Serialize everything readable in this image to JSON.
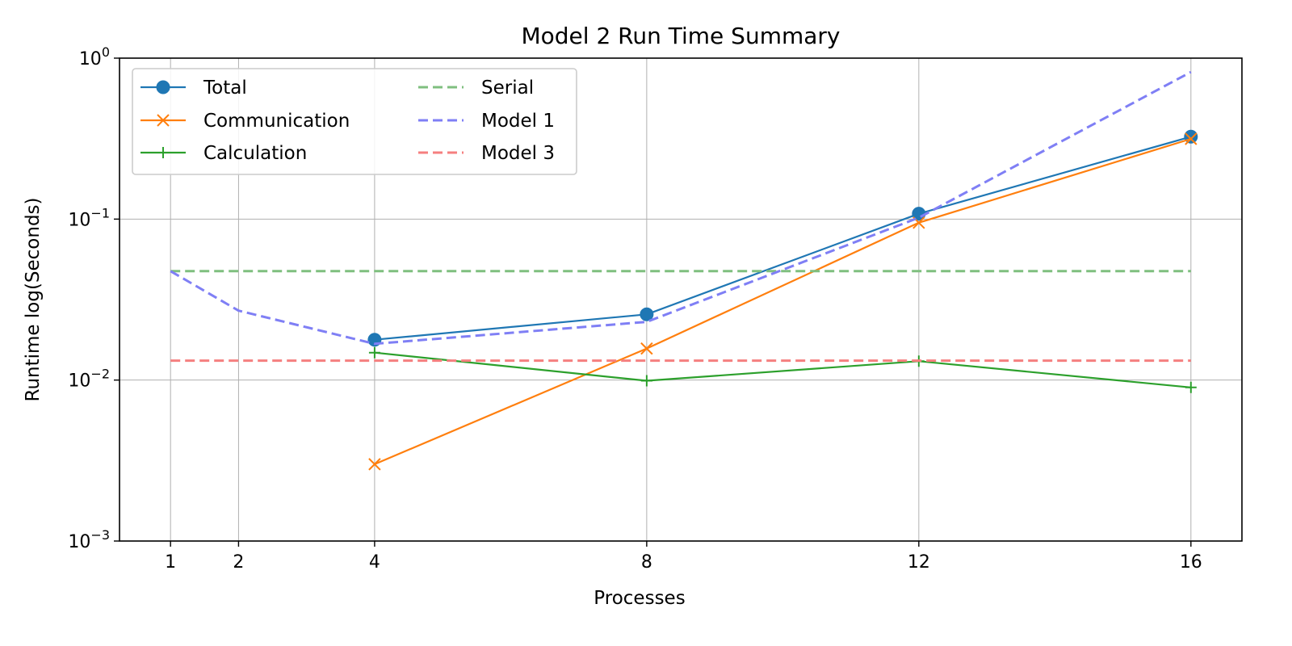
{
  "chart_data": {
    "type": "line",
    "title": "Model 2 Run Time Summary",
    "xlabel": "Processes",
    "ylabel": "Runtime log(Seconds)",
    "y_scale": "log",
    "ylim": [
      0.001,
      1
    ],
    "xlim": [
      0.25,
      16.75
    ],
    "x_ticks": [
      1,
      2,
      4,
      8,
      12,
      16
    ],
    "y_ticks": [
      {
        "value": 0.001,
        "base": "10",
        "exp": "−3"
      },
      {
        "value": 0.01,
        "base": "10",
        "exp": "−2"
      },
      {
        "value": 0.1,
        "base": "10",
        "exp": "−1"
      },
      {
        "value": 1,
        "base": "10",
        "exp": "0"
      }
    ],
    "grid": true,
    "legend_placement": "top-left",
    "series": [
      {
        "name": "Total",
        "color": "#1f77b4",
        "marker": "circle",
        "style": "solid",
        "x": [
          4,
          8,
          12,
          16
        ],
        "y": [
          0.0178,
          0.0256,
          0.108,
          0.325
        ]
      },
      {
        "name": "Communication",
        "color": "#ff7f0e",
        "marker": "x",
        "style": "solid",
        "x": [
          4,
          8,
          12,
          16
        ],
        "y": [
          0.003,
          0.0157,
          0.095,
          0.315
        ]
      },
      {
        "name": "Calculation",
        "color": "#2ca02c",
        "marker": "plus",
        "style": "solid",
        "x": [
          4,
          8,
          12,
          16
        ],
        "y": [
          0.0148,
          0.0099,
          0.0131,
          0.009
        ]
      },
      {
        "name": "Serial",
        "color": "#7fbf7f",
        "marker": "none",
        "style": "dashed",
        "x": [
          1,
          16
        ],
        "y": [
          0.0475,
          0.0475
        ]
      },
      {
        "name": "Model 1",
        "color": "#7f7ff5",
        "marker": "none",
        "style": "dashed",
        "x": [
          1,
          2,
          4,
          8,
          12,
          16
        ],
        "y": [
          0.0475,
          0.027,
          0.0168,
          0.023,
          0.102,
          0.82
        ]
      },
      {
        "name": "Model 3",
        "color": "#f57f7f",
        "marker": "none",
        "style": "dashed",
        "x": [
          1,
          16
        ],
        "y": [
          0.0132,
          0.0132
        ]
      }
    ]
  }
}
